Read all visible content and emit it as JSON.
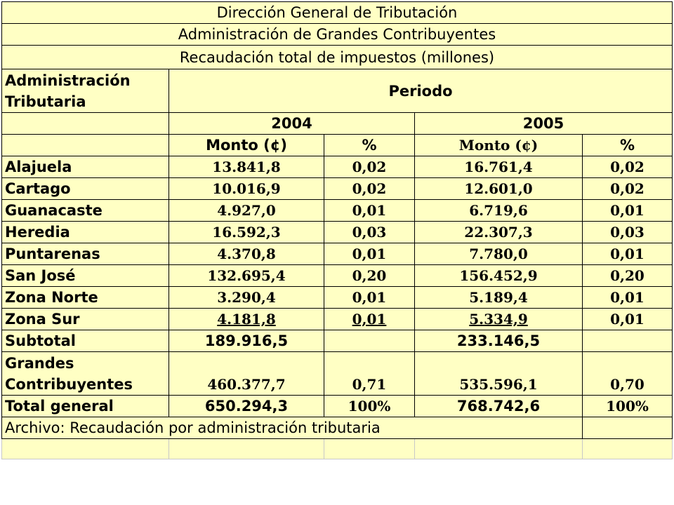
{
  "titles": [
    "Dirección General de Tributación",
    "Administración de Grandes Contribuyentes",
    "Recaudación total de impuestos (millones)"
  ],
  "header": {
    "admin_line1": "Administración",
    "admin_line2": "Tributaria",
    "periodo": "Periodo",
    "year1": "2004",
    "year2": "2005",
    "monto1": "Monto (¢)",
    "pct1": "%",
    "monto2": "Monto (¢)",
    "pct2": "%"
  },
  "rows": [
    {
      "name": "Alajuela",
      "m2004": "13.841,8",
      "p2004": "0,02",
      "m2005": "16.761,4",
      "p2005": "0,02"
    },
    {
      "name": "Cartago",
      "m2004": "10.016,9",
      "p2004": "0,02",
      "m2005": "12.601,0",
      "p2005": "0,02"
    },
    {
      "name": "Guanacaste",
      "m2004": "4.927,0",
      "p2004": "0,01",
      "m2005": "6.719,6",
      "p2005": "0,01"
    },
    {
      "name": "Heredia",
      "m2004": "16.592,3",
      "p2004": "0,03",
      "m2005": "22.307,3",
      "p2005": "0,03"
    },
    {
      "name": "Puntarenas",
      "m2004": "4.370,8",
      "p2004": "0,01",
      "m2005": "7.780,0",
      "p2005": "0,01"
    },
    {
      "name": "San José",
      "m2004": "132.695,4",
      "p2004": "0,20",
      "m2005": "156.452,9",
      "p2005": "0,20"
    },
    {
      "name": "Zona Norte",
      "m2004": "3.290,4",
      "p2004": "0,01",
      "m2005": "5.189,4",
      "p2005": "0,01"
    },
    {
      "name": "Zona Sur",
      "m2004": "4.181,8",
      "p2004": "0,01",
      "m2005": "5.334,9",
      "p2005": "0,01"
    }
  ],
  "subtotal": {
    "name": "Subtotal",
    "m2004": "189.916,5",
    "m2005": "233.146,5"
  },
  "grandes": {
    "line1": "Grandes",
    "line2": "Contribuyentes",
    "m2004": "460.377,7",
    "p2004": "0,71",
    "m2005": "535.596,1",
    "p2005": "0,70"
  },
  "total": {
    "name": "Total general",
    "m2004": "650.294,3",
    "p2004": "100%",
    "m2005": "768.742,6",
    "p2005": "100%"
  },
  "archivo": "Archivo: Recaudación por administración tributaria"
}
